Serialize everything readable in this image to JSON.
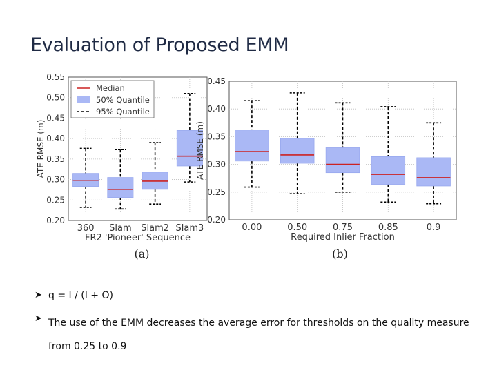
{
  "slide": {
    "title": "Evaluation of Proposed EMM",
    "bullets": [
      "q = I / (I + O)",
      "The use of the EMM decreases the average error for thresholds on the quality measure from 0.25 to 0.9"
    ]
  },
  "colors": {
    "box_fill": "#aab8f5",
    "median": "#cc2222",
    "whisker": "#000000",
    "grid": "#bdbdbd"
  },
  "chart_data": [
    {
      "type": "box",
      "panel_label": "(a)",
      "categories": [
        "360",
        "Slam",
        "Slam2",
        "Slam3"
      ],
      "xlabel": "FR2 'Pioneer' Sequence",
      "ylabel": "ATE RMSE (m)",
      "ylim": [
        0.2,
        0.55
      ],
      "yticks": [
        "0.20",
        "0.25",
        "0.30",
        "0.35",
        "0.40",
        "0.45",
        "0.50",
        "0.55"
      ],
      "grid": true,
      "legend": {
        "position": "top-left",
        "entries": [
          {
            "label": "Median",
            "style": "median"
          },
          {
            "label": "50% Quantile",
            "style": "box"
          },
          {
            "label": "95% Quantile",
            "style": "whisker"
          }
        ]
      },
      "boxes": [
        {
          "category": "360",
          "q1": 0.283,
          "median": 0.298,
          "q3": 0.315,
          "whisker_low": 0.232,
          "whisker_high": 0.376
        },
        {
          "category": "Slam",
          "q1": 0.256,
          "median": 0.276,
          "q3": 0.305,
          "whisker_low": 0.228,
          "whisker_high": 0.373
        },
        {
          "category": "Slam2",
          "q1": 0.276,
          "median": 0.296,
          "q3": 0.318,
          "whisker_low": 0.24,
          "whisker_high": 0.39
        },
        {
          "category": "Slam3",
          "q1": 0.333,
          "median": 0.357,
          "q3": 0.42,
          "whisker_low": 0.294,
          "whisker_high": 0.51
        }
      ]
    },
    {
      "type": "box",
      "panel_label": "(b)",
      "categories": [
        "0.00",
        "0.50",
        "0.75",
        "0.85",
        "0.9"
      ],
      "xlabel": "Required Inlier Fraction",
      "ylabel": "ATE RMSE (m)",
      "ylim": [
        0.2,
        0.45
      ],
      "yticks": [
        "0.20",
        "0.25",
        "0.30",
        "0.35",
        "0.40",
        "0.45"
      ],
      "grid": true,
      "boxes": [
        {
          "category": "0.00",
          "q1": 0.306,
          "median": 0.323,
          "q3": 0.362,
          "whisker_low": 0.259,
          "whisker_high": 0.415
        },
        {
          "category": "0.50",
          "q1": 0.302,
          "median": 0.317,
          "q3": 0.347,
          "whisker_low": 0.247,
          "whisker_high": 0.429
        },
        {
          "category": "0.75",
          "q1": 0.285,
          "median": 0.3,
          "q3": 0.33,
          "whisker_low": 0.25,
          "whisker_high": 0.411
        },
        {
          "category": "0.85",
          "q1": 0.264,
          "median": 0.282,
          "q3": 0.314,
          "whisker_low": 0.232,
          "whisker_high": 0.404
        },
        {
          "category": "0.9",
          "q1": 0.261,
          "median": 0.276,
          "q3": 0.312,
          "whisker_low": 0.229,
          "whisker_high": 0.375
        }
      ]
    }
  ]
}
